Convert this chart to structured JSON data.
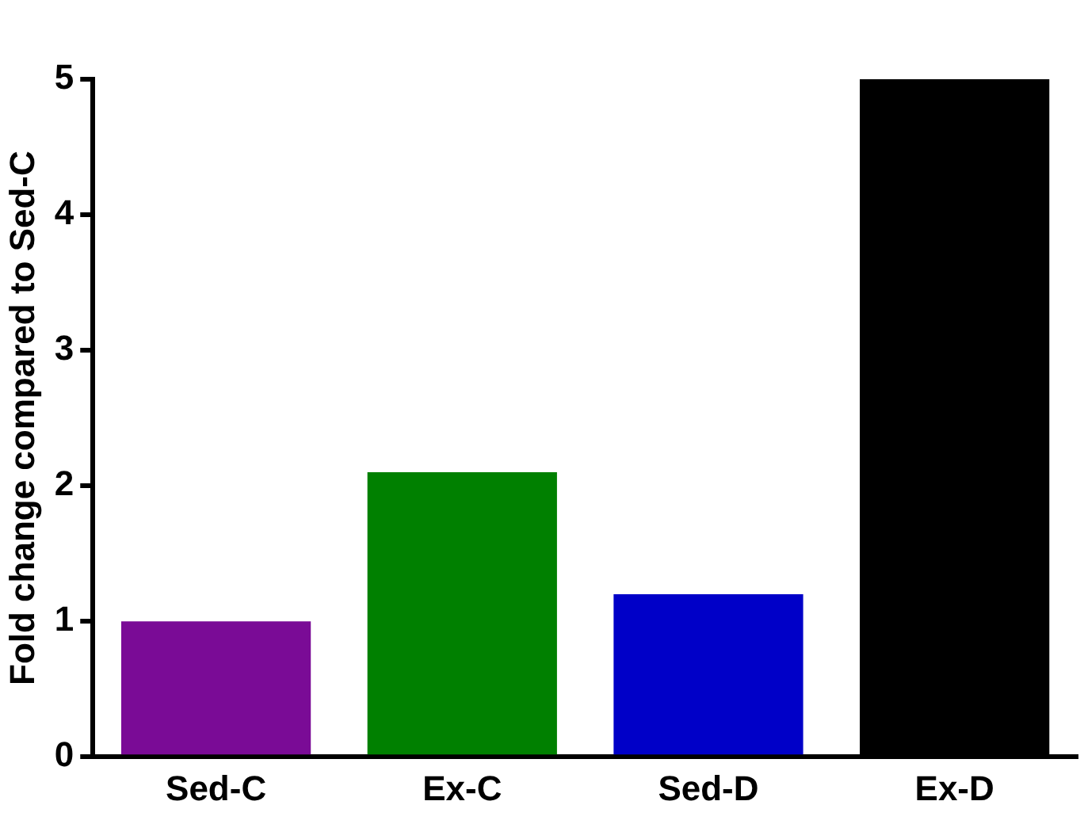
{
  "chart_data": {
    "type": "bar",
    "ylabel": "Fold change compared to Sed-C",
    "categories": [
      "Sed-C",
      "Ex-C",
      "Sed-D",
      "Ex-D"
    ],
    "values": [
      1.0,
      2.1,
      1.2,
      5.0
    ],
    "colors": [
      "#7a0b96",
      "#008000",
      "#0000c8",
      "#000000"
    ],
    "ylim": [
      0,
      5
    ],
    "yticks": [
      0,
      1,
      2,
      3,
      4,
      5
    ],
    "grid": false,
    "legend": false
  }
}
